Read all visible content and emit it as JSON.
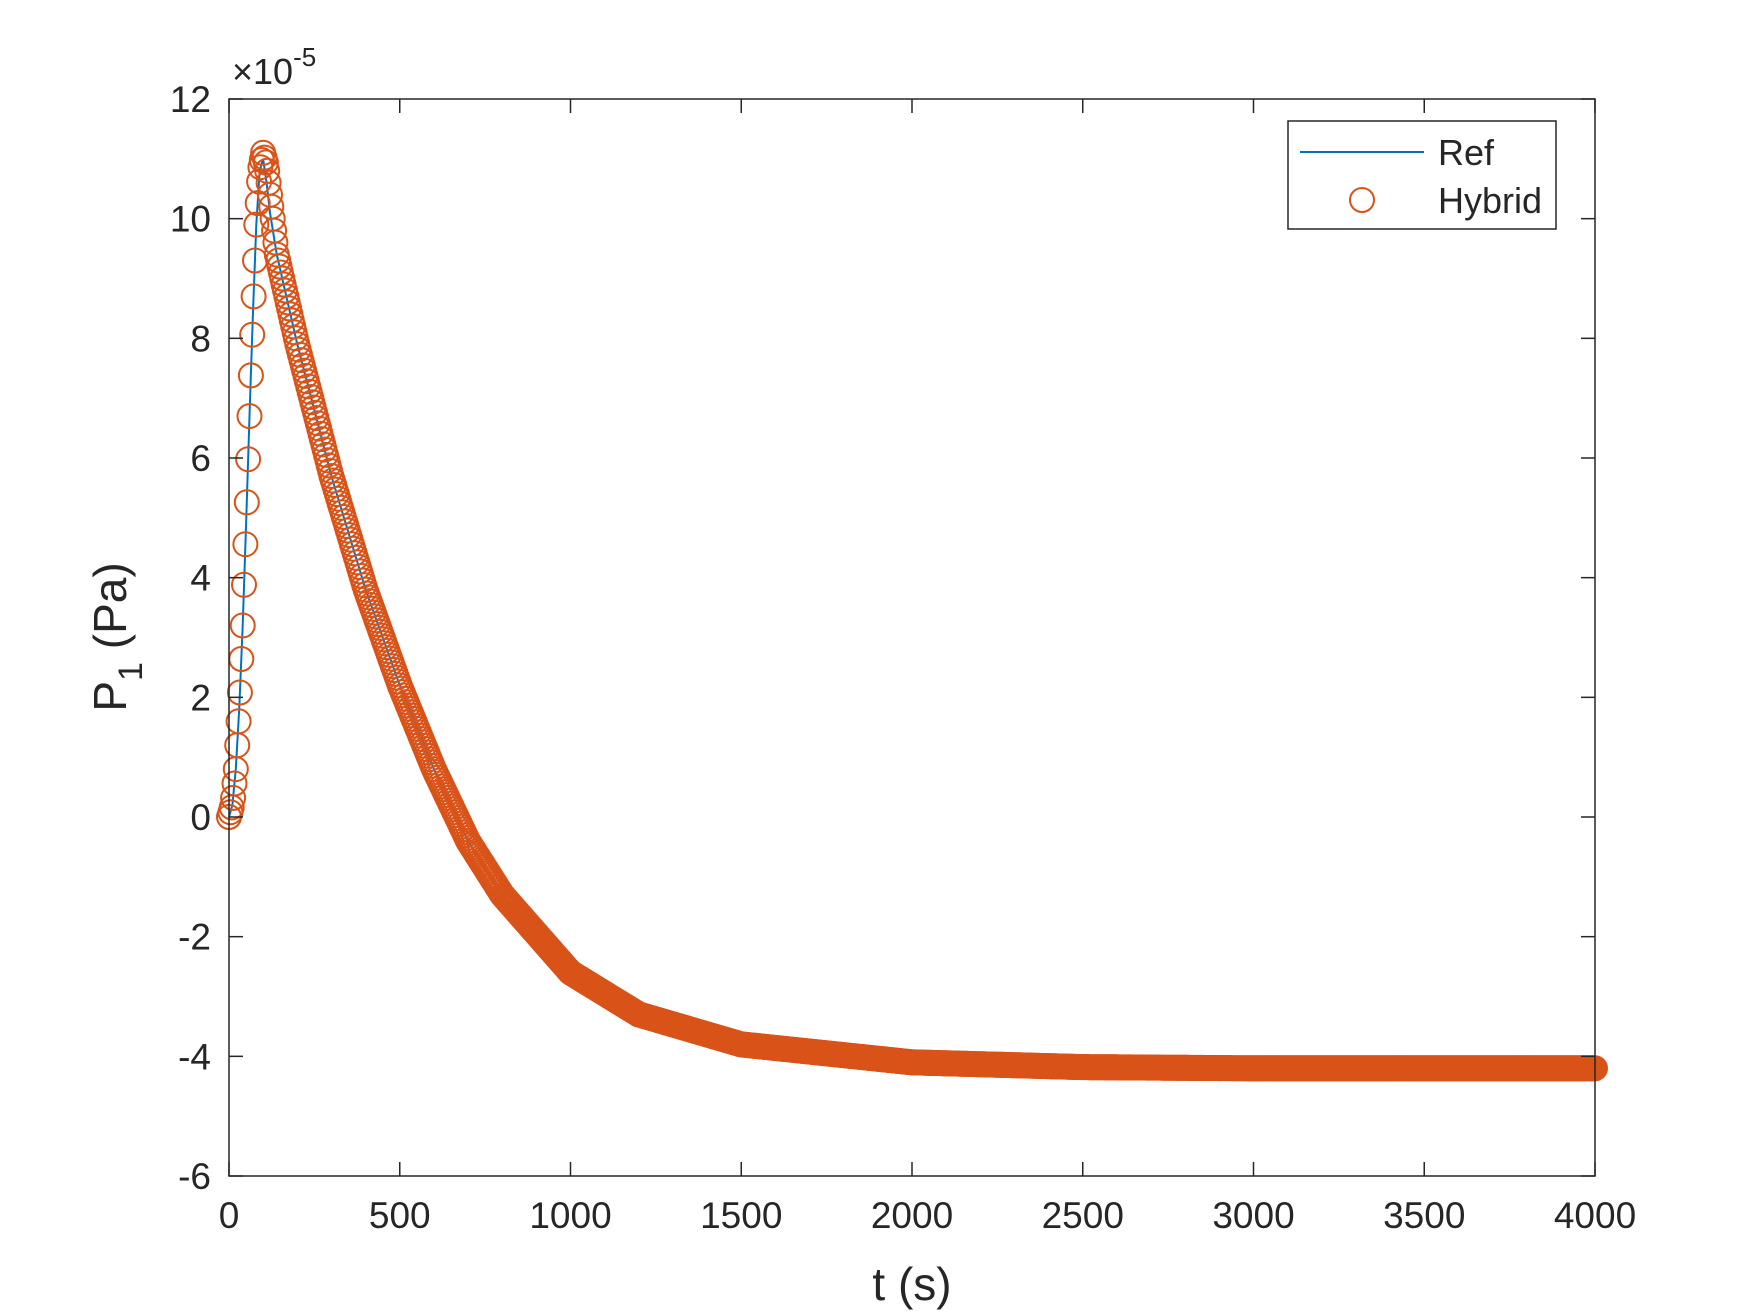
{
  "chart_data": {
    "type": "line",
    "title": "",
    "xlabel": "t (s)",
    "ylabel_main": "P",
    "ylabel_sub": "1",
    "ylabel_unit": " (Pa)",
    "y_exponent_label": "×10",
    "y_exponent_power": "-5",
    "xlim": [
      0,
      4000
    ],
    "ylim": [
      -6,
      12
    ],
    "x_ticks": [
      0,
      500,
      1000,
      1500,
      2000,
      2500,
      3000,
      3500,
      4000
    ],
    "x_tick_labels": [
      "0",
      "500",
      "1000",
      "1500",
      "2000",
      "2500",
      "3000",
      "3500",
      "4000"
    ],
    "y_ticks": [
      -6,
      -4,
      -2,
      0,
      2,
      4,
      6,
      8,
      10,
      12
    ],
    "y_tick_labels": [
      "-6",
      "-4",
      "-2",
      "0",
      "2",
      "4",
      "6",
      "8",
      "10",
      "12"
    ],
    "y_scale_factor": "1e-5",
    "grid": false,
    "legend_position": "top-right",
    "colors": {
      "ref": "#0072BD",
      "hybrid": "#D95319",
      "axis": "#262626"
    },
    "series": [
      {
        "name": "Ref",
        "style": "line",
        "x": [
          0,
          10,
          20,
          30,
          40,
          50,
          60,
          70,
          80,
          90,
          100,
          110,
          120,
          140,
          160,
          200,
          250,
          300,
          400,
          500,
          600,
          700,
          800,
          1000,
          1200,
          1500,
          2000,
          2500,
          3000,
          3500,
          4000
        ],
        "y": [
          0,
          0.2,
          0.8,
          1.8,
          3.2,
          4.9,
          6.7,
          8.4,
          9.9,
          10.8,
          11.0,
          10.6,
          10.1,
          9.4,
          8.9,
          7.9,
          6.8,
          5.7,
          3.8,
          2.2,
          0.8,
          -0.4,
          -1.3,
          -2.6,
          -3.3,
          -3.8,
          -4.1,
          -4.18,
          -4.2,
          -4.2,
          -4.2
        ]
      },
      {
        "name": "Hybrid",
        "style": "markers",
        "marker": "circle",
        "x": [
          0,
          10,
          20,
          30,
          40,
          50,
          60,
          70,
          80,
          90,
          100,
          110,
          120,
          140,
          160,
          200,
          250,
          300,
          400,
          500,
          600,
          700,
          800,
          1000,
          1200,
          1500,
          2000,
          2500,
          3000,
          3500,
          4000
        ],
        "y": [
          0,
          0.2,
          0.8,
          1.8,
          3.2,
          4.9,
          6.7,
          8.4,
          9.9,
          10.8,
          11.1,
          10.9,
          10.4,
          9.4,
          8.9,
          7.9,
          6.8,
          5.7,
          3.8,
          2.2,
          0.8,
          -0.4,
          -1.3,
          -2.6,
          -3.3,
          -3.8,
          -4.1,
          -4.18,
          -4.2,
          -4.2,
          -4.2
        ]
      }
    ]
  }
}
